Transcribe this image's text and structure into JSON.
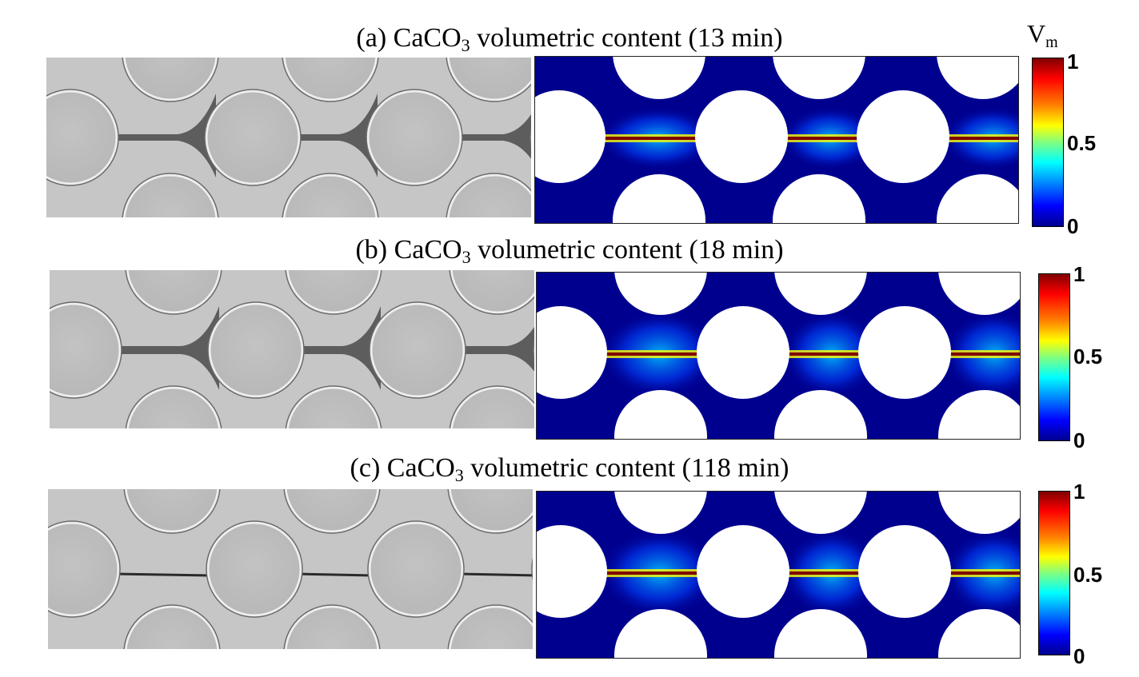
{
  "panels": [
    {
      "caption_prefix": "(a) CaCO",
      "caption_sub": "3",
      "caption_suffix": " volumetric content (13 min)"
    },
    {
      "caption_prefix": "(b) CaCO",
      "caption_sub": "3",
      "caption_suffix": " volumetric content (18 min)"
    },
    {
      "caption_prefix": "(c) CaCO",
      "caption_sub": "3",
      "caption_suffix": " volumetric content (118 min)"
    }
  ],
  "colorbar": {
    "label_main": "V",
    "label_sub": "m",
    "ticks": {
      "top": "1",
      "mid": "0.5",
      "bottom": "0"
    },
    "colormap": "jet",
    "range": [
      0,
      1
    ]
  },
  "colors": {
    "background_fluid": "#00008f",
    "grains": "#ffffff",
    "precipitate_peak": "#800000",
    "photo_background": "#c6c6c6",
    "photo_grain": "#bdbdbd"
  }
}
